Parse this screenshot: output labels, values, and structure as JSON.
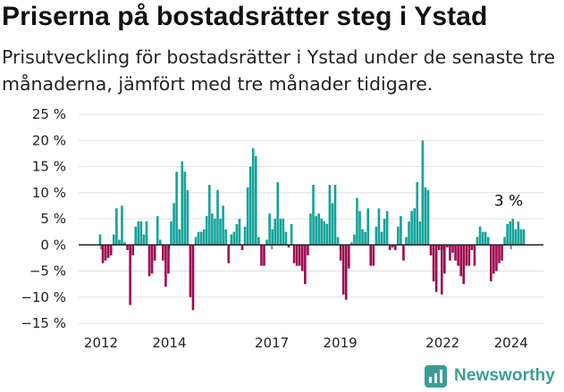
{
  "header": {
    "title": "Priserna på bostadsrätter steg i Ystad",
    "subtitle": "Prisutveckling för bostadsrätter i Ystad under de senaste tre månaderna, jämfört med tre månader tidigare."
  },
  "brand": {
    "name": "Newsworthy",
    "icon": "newsworthy-logo-icon",
    "color": "#3a9e94"
  },
  "colors": {
    "positive": "#13a39a",
    "negative": "#9e0a4f"
  },
  "chart_data": {
    "type": "bar",
    "title": "Priserna på bostadsrätter steg i Ystad",
    "xlabel": "",
    "ylabel": "",
    "x_ticks": [
      "2012",
      "2014",
      "2017",
      "2019",
      "2022",
      "2024"
    ],
    "y_ticks": [
      "25 %",
      "20 %",
      "15 %",
      "10 %",
      "5 %",
      "0 %",
      "−5 %",
      "−10 %",
      "−15 %"
    ],
    "ylim": [
      -15,
      25
    ],
    "grid": true,
    "legend": "none",
    "annotation": "3 %",
    "values": [
      2,
      -3.5,
      -3,
      -2.5,
      -2,
      2,
      7,
      1,
      7.5,
      0.5,
      -1,
      -11.5,
      -2,
      3.5,
      4.5,
      4.5,
      2,
      4.5,
      -6,
      -5.5,
      -3,
      5.5,
      1,
      -3,
      -8,
      -5.5,
      4.5,
      8,
      14,
      3,
      16,
      14,
      10.5,
      -10,
      -12.5,
      1.5,
      2.5,
      2.5,
      3,
      5.5,
      11.5,
      6,
      5,
      10.5,
      5,
      7.5,
      3,
      -3.5,
      2,
      2.5,
      4,
      5,
      -1,
      3.5,
      11,
      15,
      18.5,
      17,
      1.5,
      -4,
      -4,
      1,
      6,
      3,
      5,
      12,
      5,
      5,
      2.5,
      -0.5,
      4,
      -3.5,
      -4,
      -4,
      -5,
      -7.5,
      -2,
      6,
      11.5,
      5.5,
      6,
      5,
      4.5,
      4,
      11.5,
      8,
      11.5,
      1.5,
      -3,
      -9.5,
      -10.5,
      -4.5,
      0.5,
      2,
      9,
      6.5,
      3,
      2.5,
      7,
      -4,
      -4,
      3.5,
      7,
      2.5,
      5,
      6.5,
      -1,
      -0.5,
      -1,
      3.5,
      5.5,
      -3,
      1.5,
      4.5,
      6.5,
      7,
      12,
      4.5,
      20,
      11,
      10.5,
      -2,
      -7,
      -9,
      -1,
      -9.5,
      -5.5,
      -0.5,
      -3,
      -1.5,
      -3,
      -4,
      -6,
      -7.5,
      -4,
      -4,
      -1,
      -4,
      1.5,
      3.5,
      2.5,
      2.5,
      1.5,
      -7,
      -5.5,
      -5,
      -3.5,
      -3,
      1.5,
      4,
      4.5,
      5,
      3,
      4.5,
      3,
      3
    ]
  }
}
